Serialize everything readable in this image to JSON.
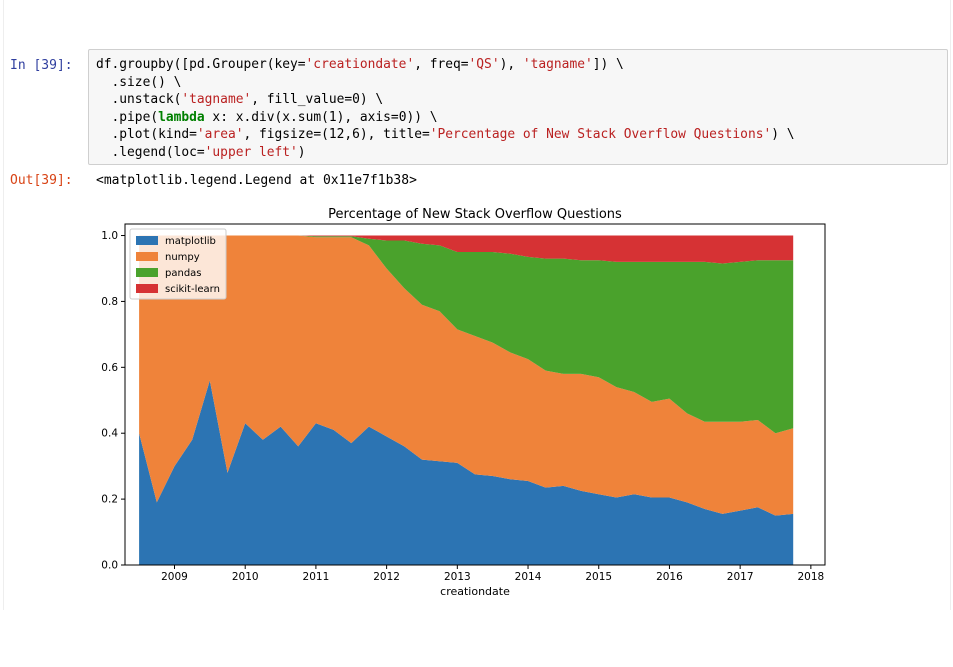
{
  "cell_in": {
    "prompt": "In [39]:",
    "code_lines": [
      [
        {
          "t": "df.groupby([pd.Grouper(key="
        },
        {
          "t": "'creationdate'",
          "c": "str"
        },
        {
          "t": ", freq="
        },
        {
          "t": "'QS'",
          "c": "str"
        },
        {
          "t": "), "
        },
        {
          "t": "'tagname'",
          "c": "str"
        },
        {
          "t": "]) \\"
        }
      ],
      [
        {
          "t": "  .size() \\"
        }
      ],
      [
        {
          "t": "  .unstack("
        },
        {
          "t": "'tagname'",
          "c": "str"
        },
        {
          "t": ", fill_value=0) \\"
        }
      ],
      [
        {
          "t": "  .pipe("
        },
        {
          "t": "lambda",
          "c": "kw"
        },
        {
          "t": " x: x.div(x.sum(1), axis=0)) \\"
        }
      ],
      [
        {
          "t": "  .plot(kind="
        },
        {
          "t": "'area'",
          "c": "str"
        },
        {
          "t": ", figsize=(12,6), title="
        },
        {
          "t": "'Percentage of New Stack Overflow Questions'",
          "c": "str"
        },
        {
          "t": ") \\"
        }
      ],
      [
        {
          "t": "  .legend(loc="
        },
        {
          "t": "'upper left'",
          "c": "str"
        },
        {
          "t": ")"
        }
      ]
    ]
  },
  "cell_out": {
    "prompt": "Out[39]:",
    "text": "<matplotlib.legend.Legend at 0x11e7f1b38>"
  },
  "colors": {
    "matplotlib": "#2c74b3",
    "numpy": "#ef833a",
    "pandas": "#4aa22c",
    "scikit-learn": "#d63234"
  },
  "chart_data": {
    "type": "area",
    "stacked": true,
    "title": "Percentage of New Stack Overflow Questions",
    "xlabel": "creationdate",
    "ylabel": "",
    "xlim": [
      2008.3,
      2018.2
    ],
    "ylim": [
      0.0,
      1.035
    ],
    "xticks": [
      2009,
      2010,
      2011,
      2012,
      2013,
      2014,
      2015,
      2016,
      2017,
      2018
    ],
    "yticks": [
      "0.0",
      "0.2",
      "0.4",
      "0.6",
      "0.8",
      "1.0"
    ],
    "legend_loc": "upper left",
    "x": [
      2008.5,
      2008.75,
      2009.0,
      2009.25,
      2009.5,
      2009.75,
      2010.0,
      2010.25,
      2010.5,
      2010.75,
      2011.0,
      2011.25,
      2011.5,
      2011.75,
      2012.0,
      2012.25,
      2012.5,
      2012.75,
      2013.0,
      2013.25,
      2013.5,
      2013.75,
      2014.0,
      2014.25,
      2014.5,
      2014.75,
      2015.0,
      2015.25,
      2015.5,
      2015.75,
      2016.0,
      2016.25,
      2016.5,
      2016.75,
      2017.0,
      2017.25,
      2017.5,
      2017.75
    ],
    "series": [
      {
        "name": "matplotlib",
        "values": [
          0.4,
          0.19,
          0.3,
          0.38,
          0.56,
          0.28,
          0.43,
          0.38,
          0.42,
          0.36,
          0.43,
          0.41,
          0.37,
          0.42,
          0.39,
          0.36,
          0.32,
          0.315,
          0.31,
          0.275,
          0.27,
          0.26,
          0.255,
          0.235,
          0.24,
          0.225,
          0.215,
          0.205,
          0.215,
          0.205,
          0.205,
          0.19,
          0.17,
          0.155,
          0.165,
          0.175,
          0.15,
          0.155
        ]
      },
      {
        "name": "numpy",
        "values": [
          0.6,
          0.81,
          0.7,
          0.62,
          0.44,
          0.72,
          0.57,
          0.62,
          0.58,
          0.64,
          0.565,
          0.585,
          0.625,
          0.55,
          0.51,
          0.48,
          0.47,
          0.455,
          0.405,
          0.42,
          0.405,
          0.385,
          0.37,
          0.355,
          0.34,
          0.355,
          0.355,
          0.335,
          0.31,
          0.29,
          0.3,
          0.27,
          0.265,
          0.28,
          0.27,
          0.265,
          0.25,
          0.26
        ]
      },
      {
        "name": "pandas",
        "values": [
          0.0,
          0.0,
          0.0,
          0.0,
          0.0,
          0.0,
          0.0,
          0.0,
          0.0,
          0.0,
          0.003,
          0.003,
          0.003,
          0.02,
          0.085,
          0.145,
          0.185,
          0.2,
          0.235,
          0.255,
          0.275,
          0.3,
          0.31,
          0.34,
          0.35,
          0.345,
          0.355,
          0.38,
          0.395,
          0.425,
          0.415,
          0.46,
          0.485,
          0.48,
          0.485,
          0.485,
          0.525,
          0.51
        ]
      },
      {
        "name": "scikit-learn",
        "values": [
          0.0,
          0.0,
          0.0,
          0.0,
          0.0,
          0.0,
          0.0,
          0.0,
          0.0,
          0.0,
          0.002,
          0.002,
          0.002,
          0.01,
          0.015,
          0.015,
          0.025,
          0.03,
          0.05,
          0.05,
          0.05,
          0.055,
          0.065,
          0.07,
          0.07,
          0.075,
          0.075,
          0.08,
          0.08,
          0.08,
          0.08,
          0.08,
          0.08,
          0.085,
          0.08,
          0.075,
          0.075,
          0.075
        ]
      }
    ]
  }
}
